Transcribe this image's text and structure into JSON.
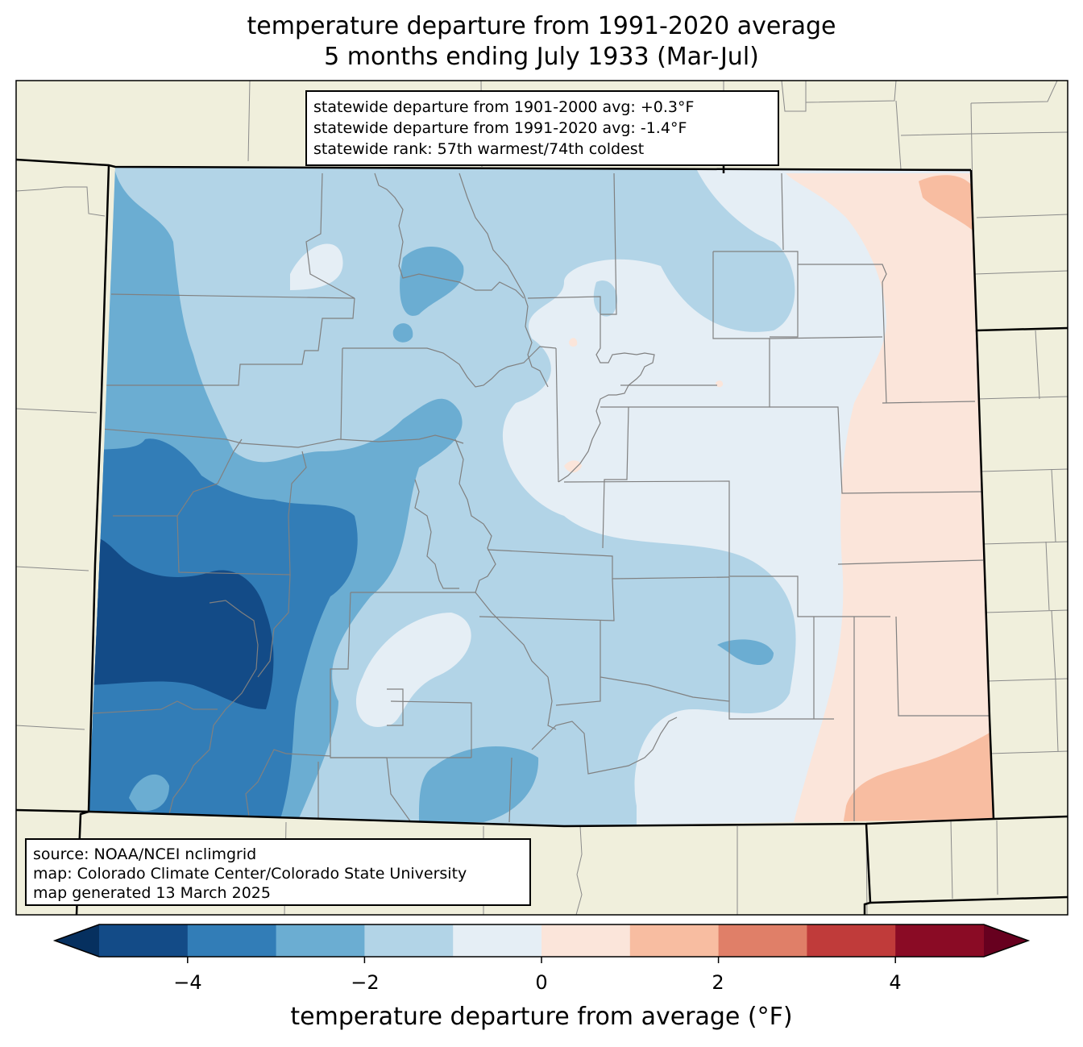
{
  "title_line1": "temperature departure from 1991-2020 average",
  "title_line2": "5 months ending July 1933 (Mar-Jul)",
  "stats": {
    "line1": "statewide departure from 1901-2000 avg: +0.3°F",
    "line2": "statewide departure from 1991-2020 avg: -1.4°F",
    "line3": "statewide rank: 57th warmest/74th coldest"
  },
  "source": {
    "line1": "source: NOAA/NCEI nclimgrid",
    "line2": "map: Colorado Climate Center/Colorado State University",
    "line3": "map generated 13 March 2025"
  },
  "colorbar": {
    "label": "temperature departure from average (°F)",
    "ticks": [
      "−4",
      "−2",
      "0",
      "2",
      "4"
    ],
    "range": [
      -5,
      5
    ],
    "bins": [
      {
        "from": -5,
        "to": -4,
        "color": "#134b87"
      },
      {
        "from": -4,
        "to": -3,
        "color": "#327db7"
      },
      {
        "from": -3,
        "to": -2,
        "color": "#6badd2"
      },
      {
        "from": -2,
        "to": -1,
        "color": "#b2d4e7"
      },
      {
        "from": -1,
        "to": 0,
        "color": "#e5eef5"
      },
      {
        "from": 0,
        "to": 1,
        "color": "#fbe5da"
      },
      {
        "from": 1,
        "to": 2,
        "color": "#f8bda1"
      },
      {
        "from": 2,
        "to": 3,
        "color": "#e07f68"
      },
      {
        "from": 3,
        "to": 4,
        "color": "#c03b3a"
      },
      {
        "from": 4,
        "to": 5,
        "color": "#8a0b25"
      }
    ],
    "under_color": "#06305f",
    "over_color": "#67001f"
  },
  "colors": {
    "land": "#f0efdc",
    "county_lines": "#808080",
    "state_lines": "#000000"
  }
}
